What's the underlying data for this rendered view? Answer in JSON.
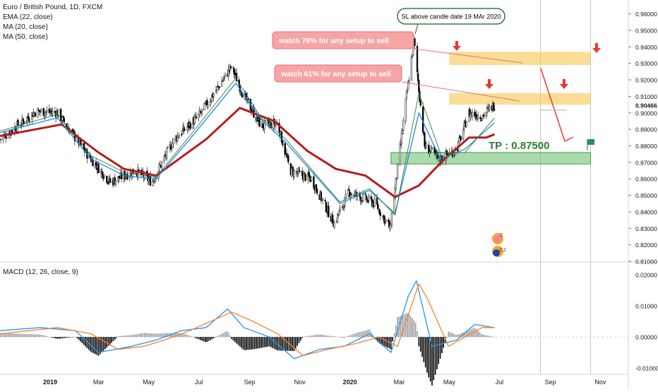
{
  "header": {
    "symbol": "Euro / British Pound, 1D, FXCM",
    "ema": "EMA (22, close)",
    "ma20": "MA (20, close)",
    "ma50": "MA (50, close)",
    "macd": "MACD (12, 26, close, 9)"
  },
  "colors": {
    "ma50": "#b71c1c",
    "ma20": "#1e88e5",
    "ema": "#2e7d32",
    "macd_line": "#2196f3",
    "signal_line": "#ff7f27",
    "zone_yellow": "#f9c74f",
    "zone_green": "#66bb6a",
    "callout_pink": "#f28b8b",
    "arrow_red": "#e53935"
  },
  "annotations": {
    "sl_note": "SL above candle date 19 MAr 2020",
    "watch78": "watch 78% for any setup to sell",
    "watch61": "watch 61% for any setup to sell",
    "tp": "TP : 0.87500",
    "badge1": "2",
    "badge2": "2 2"
  },
  "chart_data": [
    {
      "type": "candlestick",
      "title": "Euro / British Pound, 1D, FXCM",
      "ylim": [
        0.81,
        0.965
      ],
      "y_ticks": [
        "0.96000",
        "0.95000",
        "0.94000",
        "0.93000",
        "0.92000",
        "0.91000",
        "0.90000",
        "0.89000",
        "0.88000",
        "0.87000",
        "0.86000",
        "0.85000",
        "0.84000",
        "0.83000",
        "0.82000",
        "0.81000"
      ],
      "last_price": "0.90466",
      "x_ticks": [
        "2019",
        "Mar",
        "May",
        "Jul",
        "Sep",
        "Nov",
        "2020",
        "Mar",
        "May",
        "Jul",
        "Sep",
        "Nov"
      ],
      "price_path": [
        [
          "2018-11-01",
          0.884
        ],
        [
          "2018-12-15",
          0.901
        ],
        [
          "2019-01-10",
          0.9
        ],
        [
          "2019-02-15",
          0.875
        ],
        [
          "2019-03-15",
          0.858
        ],
        [
          "2019-04-15",
          0.865
        ],
        [
          "2019-05-05",
          0.858
        ],
        [
          "2019-06-01",
          0.884
        ],
        [
          "2019-07-01",
          0.898
        ],
        [
          "2019-08-10",
          0.928
        ],
        [
          "2019-08-25",
          0.91
        ],
        [
          "2019-09-15",
          0.892
        ],
        [
          "2019-10-05",
          0.894
        ],
        [
          "2019-10-20",
          0.865
        ],
        [
          "2019-11-15",
          0.86
        ],
        [
          "2019-12-13",
          0.833
        ],
        [
          "2019-12-31",
          0.852
        ],
        [
          "2020-02-01",
          0.845
        ],
        [
          "2020-02-19",
          0.83
        ],
        [
          "2020-03-10",
          0.91
        ],
        [
          "2020-03-19",
          0.944
        ],
        [
          "2020-04-01",
          0.88
        ],
        [
          "2020-04-20",
          0.872
        ],
        [
          "2020-05-10",
          0.878
        ],
        [
          "2020-05-25",
          0.9
        ],
        [
          "2020-06-10",
          0.898
        ],
        [
          "2020-06-25",
          0.905
        ]
      ],
      "series": [
        {
          "name": "MA (50, close)",
          "values": [
            [
              "2018-11-01",
              0.886
            ],
            [
              "2019-01-15",
              0.893
            ],
            [
              "2019-03-01",
              0.876
            ],
            [
              "2019-04-01",
              0.866
            ],
            [
              "2019-05-10",
              0.862
            ],
            [
              "2019-07-10",
              0.884
            ],
            [
              "2019-08-20",
              0.903
            ],
            [
              "2019-10-01",
              0.895
            ],
            [
              "2019-11-10",
              0.877
            ],
            [
              "2019-12-15",
              0.866
            ],
            [
              "2020-01-20",
              0.862
            ],
            [
              "2020-02-25",
              0.849
            ],
            [
              "2020-03-25",
              0.856
            ],
            [
              "2020-04-25",
              0.872
            ],
            [
              "2020-05-25",
              0.885
            ],
            [
              "2020-06-15",
              0.885
            ],
            [
              "2020-06-25",
              0.887
            ]
          ]
        },
        {
          "name": "MA (20, close)",
          "values": [
            [
              "2018-11-01",
              0.888
            ],
            [
              "2019-01-10",
              0.897
            ],
            [
              "2019-02-20",
              0.872
            ],
            [
              "2019-04-01",
              0.862
            ],
            [
              "2019-05-10",
              0.86
            ],
            [
              "2019-06-20",
              0.884
            ],
            [
              "2019-08-15",
              0.918
            ],
            [
              "2019-09-15",
              0.896
            ],
            [
              "2019-10-15",
              0.882
            ],
            [
              "2019-11-20",
              0.862
            ],
            [
              "2019-12-20",
              0.845
            ],
            [
              "2020-01-25",
              0.853
            ],
            [
              "2020-02-25",
              0.839
            ],
            [
              "2020-03-25",
              0.9
            ],
            [
              "2020-04-20",
              0.872
            ],
            [
              "2020-05-20",
              0.878
            ],
            [
              "2020-06-25",
              0.894
            ]
          ]
        },
        {
          "name": "EMA (22, close)",
          "values": [
            [
              "2018-11-01",
              0.889
            ],
            [
              "2019-01-10",
              0.899
            ],
            [
              "2019-02-20",
              0.874
            ],
            [
              "2019-04-01",
              0.864
            ],
            [
              "2019-05-10",
              0.861
            ],
            [
              "2019-06-20",
              0.886
            ],
            [
              "2019-08-15",
              0.921
            ],
            [
              "2019-09-15",
              0.897
            ],
            [
              "2019-10-15",
              0.884
            ],
            [
              "2019-11-20",
              0.863
            ],
            [
              "2019-12-20",
              0.846
            ],
            [
              "2020-01-25",
              0.854
            ],
            [
              "2020-02-25",
              0.838
            ],
            [
              "2020-03-25",
              0.912
            ],
            [
              "2020-04-20",
              0.876
            ],
            [
              "2020-05-20",
              0.876
            ],
            [
              "2020-06-25",
              0.897
            ]
          ]
        }
      ],
      "zones": [
        {
          "label": "78%",
          "from": "2020-05-01",
          "to": "2020-10-20",
          "low": 0.929,
          "high": 0.937
        },
        {
          "label": "61%",
          "from": "2020-05-01",
          "to": "2020-10-20",
          "low": 0.905,
          "high": 0.912
        },
        {
          "label": "TP",
          "from": "2020-02-20",
          "to": "2020-10-20",
          "low": 0.869,
          "high": 0.876
        }
      ]
    },
    {
      "type": "line",
      "title": "MACD (12, 26, close, 9)",
      "ylim": [
        -0.012,
        0.022
      ],
      "y_ticks": [
        "0.02000",
        "0.01000",
        "0.00000",
        "-0.01000"
      ],
      "series": [
        {
          "name": "MACD",
          "values": [
            [
              "2018-11-01",
              0.002
            ],
            [
              "2018-12-20",
              0.003
            ],
            [
              "2019-02-01",
              0.002
            ],
            [
              "2019-03-01",
              -0.005
            ],
            [
              "2019-04-10",
              -0.003
            ],
            [
              "2019-05-10",
              -0.001
            ],
            [
              "2019-06-10",
              0.002
            ],
            [
              "2019-07-10",
              0.003
            ],
            [
              "2019-08-05",
              0.009
            ],
            [
              "2019-08-25",
              0.003
            ],
            [
              "2019-09-25",
              0.0
            ],
            [
              "2019-10-25",
              -0.007
            ],
            [
              "2019-11-25",
              -0.004
            ],
            [
              "2019-12-25",
              -0.003
            ],
            [
              "2020-01-25",
              0.001
            ],
            [
              "2020-02-20",
              -0.005
            ],
            [
              "2020-03-12",
              0.013
            ],
            [
              "2020-03-22",
              0.018
            ],
            [
              "2020-04-10",
              -0.003
            ],
            [
              "2020-05-10",
              -0.001
            ],
            [
              "2020-06-01",
              0.004
            ],
            [
              "2020-06-25",
              0.003
            ]
          ]
        },
        {
          "name": "Signal",
          "values": [
            [
              "2018-11-01",
              0.001
            ],
            [
              "2019-01-10",
              0.003
            ],
            [
              "2019-02-20",
              0.001
            ],
            [
              "2019-03-25",
              -0.004
            ],
            [
              "2019-04-25",
              -0.003
            ],
            [
              "2019-05-20",
              -0.001
            ],
            [
              "2019-06-20",
              0.002
            ],
            [
              "2019-08-10",
              0.008
            ],
            [
              "2019-09-05",
              0.005
            ],
            [
              "2019-10-05",
              0.001
            ],
            [
              "2019-11-05",
              -0.006
            ],
            [
              "2019-12-05",
              -0.004
            ],
            [
              "2020-01-10",
              -0.002
            ],
            [
              "2020-02-05",
              0.0
            ],
            [
              "2020-02-28",
              -0.003
            ],
            [
              "2020-03-25",
              0.017
            ],
            [
              "2020-04-05",
              0.012
            ],
            [
              "2020-04-30",
              -0.003
            ],
            [
              "2020-05-20",
              0.0
            ],
            [
              "2020-06-10",
              0.003
            ],
            [
              "2020-06-25",
              0.003
            ]
          ]
        }
      ]
    }
  ]
}
